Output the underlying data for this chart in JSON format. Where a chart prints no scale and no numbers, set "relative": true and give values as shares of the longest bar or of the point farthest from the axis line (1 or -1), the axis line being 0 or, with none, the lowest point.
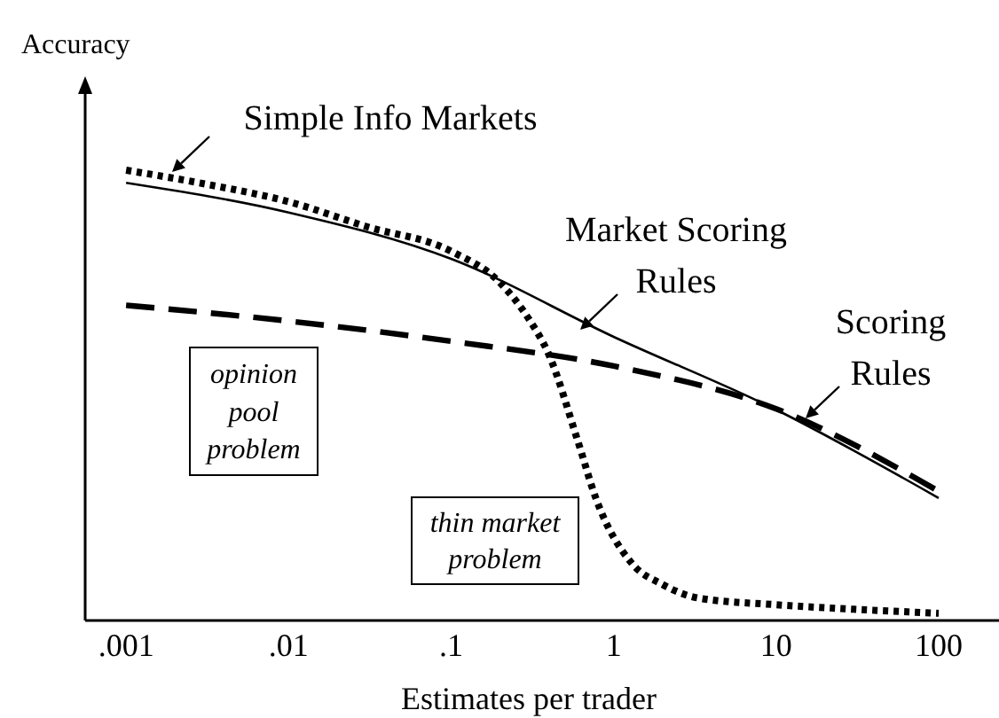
{
  "chart_data": {
    "type": "line",
    "relative": true,
    "xlabel": "Estimates per trader",
    "ylabel": "Accuracy",
    "log": "x",
    "xlim": [
      0.00056,
      235
    ],
    "xticks": [
      {
        "value": 0.001,
        "label": ".001"
      },
      {
        "value": 0.01,
        "label": ".01"
      },
      {
        "value": 0.1,
        "label": ".1"
      },
      1,
      10,
      100
    ],
    "series": [
      {
        "color": "#000000",
        "line_style": "dotted",
        "x": [
          0.001,
          0.003,
          0.01,
          0.03,
          0.1,
          0.2,
          0.3,
          0.4,
          0.6,
          0.78,
          1.3,
          2,
          3.3,
          10,
          30,
          100
        ],
        "values": [
          1,
          0.97,
          0.93,
          0.875,
          0.82,
          0.75,
          0.67,
          0.59,
          0.4,
          0.27,
          0.126,
          0.08,
          0.05,
          0.035,
          0.025,
          0.016
        ]
      },
      {
        "color": "#000000",
        "line_style": "solid",
        "x": [
          0.001,
          0.01,
          0.1,
          1,
          10,
          100
        ],
        "values": [
          0.972,
          0.906,
          0.803,
          0.63,
          0.468,
          0.272
        ]
      },
      {
        "color": "#000000",
        "line_style": "dashed",
        "x": [
          0.001,
          0.01,
          0.1,
          1,
          10,
          100
        ],
        "values": [
          0.7,
          0.665,
          0.62,
          0.565,
          0.47,
          0.287
        ]
      }
    ],
    "annotations": [
      "Simple Info Markets",
      "Market Scoring Rules",
      "Scoring Rules",
      "opinion pool problem",
      "thin market problem"
    ]
  }
}
